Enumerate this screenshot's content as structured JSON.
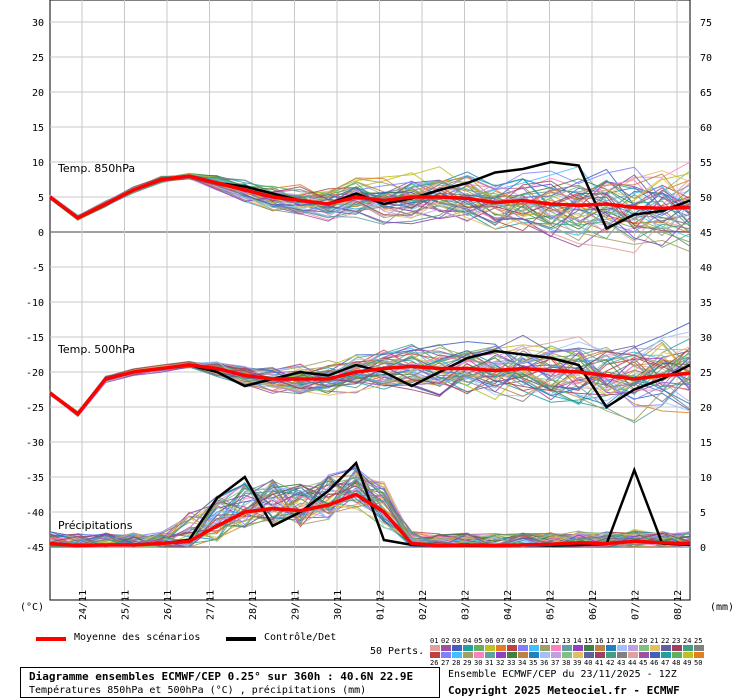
{
  "chart_data": {
    "type": "line",
    "left_axis_unit": "(°C)",
    "right_axis_unit": "(mm)",
    "left_ticks": [
      30,
      25,
      20,
      15,
      10,
      5,
      0,
      -5,
      -10,
      -15,
      -20,
      -25,
      -30,
      -35,
      -40,
      -45
    ],
    "right_ticks": [
      75,
      70,
      65,
      60,
      55,
      50,
      45,
      40,
      35,
      30,
      25,
      20,
      15,
      10,
      5,
      0
    ],
    "x_dates": [
      "24/11",
      "25/11",
      "26/11",
      "27/11",
      "28/11",
      "29/11",
      "30/11",
      "01/12",
      "02/12",
      "03/12",
      "04/12",
      "05/12",
      "06/12",
      "07/12",
      "08/12"
    ],
    "panel_labels": {
      "t850": "Temp. 850hPa",
      "t500": "Temp. 500hPa",
      "precip": "Précipitations"
    },
    "series": [
      {
        "name": "Moyenne des scénarios",
        "color": "#ff0000",
        "t850": [
          5,
          2,
          4,
          6,
          7.5,
          8,
          7,
          6,
          5,
          4.5,
          4,
          5,
          4.5,
          5,
          5,
          4.8,
          4.2,
          4.5,
          4,
          3.8,
          4,
          3.5,
          3.4,
          3.5
        ],
        "t500": [
          -23,
          -26,
          -21,
          -20,
          -19.5,
          -19,
          -19.5,
          -20.5,
          -21,
          -21,
          -21,
          -20,
          -19.5,
          -19.2,
          -19.5,
          -19.5,
          -19.8,
          -19.5,
          -19.8,
          -20,
          -20.5,
          -21,
          -20.5,
          -20.2
        ],
        "precip": [
          0.5,
          0.2,
          0.3,
          0.3,
          0.5,
          0.8,
          3,
          5,
          5.5,
          5.2,
          6,
          7.5,
          5,
          0.5,
          0.2,
          0.3,
          0.2,
          0.3,
          0.4,
          0.6,
          0.5,
          0.8,
          0.6,
          0.5
        ]
      },
      {
        "name": "Contrôle/Det",
        "color": "#000000",
        "t850": [
          5,
          2,
          4,
          6,
          7.5,
          8,
          7,
          6.5,
          5.5,
          4.5,
          4,
          5.5,
          4,
          4.8,
          6,
          7,
          8.5,
          9,
          10,
          9.5,
          0.5,
          2.5,
          3,
          4.5
        ],
        "t500": [
          -23,
          -26,
          -21,
          -20,
          -19.5,
          -19,
          -20,
          -22,
          -21,
          -20,
          -20.5,
          -19,
          -20,
          -22,
          -20,
          -18,
          -17,
          -17.5,
          -18,
          -19,
          -25,
          -22.5,
          -21,
          -19
        ],
        "precip": [
          0.5,
          0.2,
          0.3,
          0.3,
          0.5,
          1,
          7,
          10,
          3,
          5,
          8,
          12,
          1,
          0.3,
          0.2,
          0.2,
          0.2,
          0.3,
          0.2,
          0.3,
          0.4,
          11,
          0.5,
          0.3
        ]
      }
    ]
  },
  "legend": {
    "mean_label": "Moyenne des scénarios",
    "ctrl_label": "Contrôle/Det",
    "perts_label": "50 Perts.",
    "pert_numbers_top": [
      "01",
      "02",
      "03",
      "04",
      "05",
      "06",
      "07",
      "08",
      "09",
      "10",
      "11",
      "12",
      "13",
      "14",
      "15",
      "16",
      "17",
      "18",
      "19",
      "20",
      "21",
      "22",
      "23",
      "24",
      "25"
    ],
    "pert_numbers_bottom": [
      "26",
      "27",
      "28",
      "29",
      "30",
      "31",
      "32",
      "33",
      "34",
      "35",
      "36",
      "37",
      "38",
      "39",
      "40",
      "41",
      "42",
      "43",
      "44",
      "45",
      "46",
      "47",
      "48",
      "49",
      "50"
    ]
  },
  "footer": {
    "title": "Diagramme ensembles ECMWF/CEP 0.25° sur 360h : 40.6N 22.9E",
    "subtitle": "Températures 850hPa et 500hPa (°C) , précipitations (mm)",
    "run": "Ensemble ECMWF/CEP du 23/11/2025 - 12Z",
    "copyright": "Copyright 2025 Meteociel.fr - ECMWF"
  }
}
